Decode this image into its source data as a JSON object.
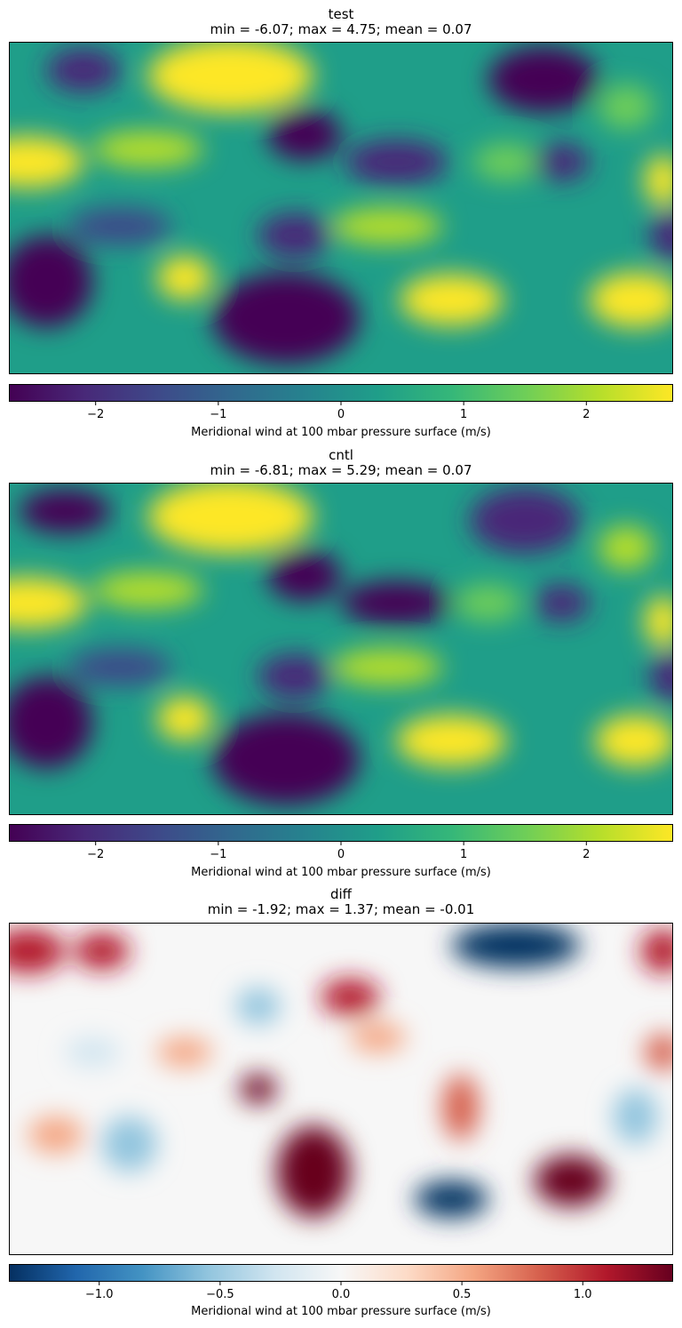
{
  "chart_data": [
    {
      "type": "heatmap",
      "panel": "test",
      "title": "test",
      "subtitle": "min = -6.07; max = 4.75; mean = 0.07",
      "colormap": "viridis",
      "colorbar": {
        "label": "Meridional wind at 100 mbar pressure surface (m/s)",
        "range": [
          -2.7,
          2.7
        ],
        "ticks": [
          -2,
          -1,
          0,
          1,
          2
        ],
        "tick_labels": [
          "−2",
          "−1",
          "0",
          "1",
          "2"
        ]
      },
      "grid": false,
      "field_blobs": [
        {
          "lon": 120,
          "lat": 72,
          "value": 2.7,
          "rx": 45,
          "ry": 20
        },
        {
          "lon": 160,
          "lat": 40,
          "value": -2.5,
          "rx": 20,
          "ry": 14
        },
        {
          "lon": 210,
          "lat": 25,
          "value": -2.2,
          "rx": 28,
          "ry": 12
        },
        {
          "lon": 290,
          "lat": 70,
          "value": -2.7,
          "rx": 30,
          "ry": 18
        },
        {
          "lon": 10,
          "lat": 25,
          "value": 2.5,
          "rx": 30,
          "ry": 14
        },
        {
          "lon": 75,
          "lat": 32,
          "value": 2.3,
          "rx": 30,
          "ry": 10
        },
        {
          "lon": 355,
          "lat": 15,
          "value": 2.5,
          "rx": 10,
          "ry": 14
        },
        {
          "lon": 335,
          "lat": 55,
          "value": 1.8,
          "rx": 15,
          "ry": 12
        },
        {
          "lon": 40,
          "lat": 75,
          "value": -2.4,
          "rx": 20,
          "ry": 12
        },
        {
          "lon": 20,
          "lat": -40,
          "value": -2.5,
          "rx": 25,
          "ry": 25
        },
        {
          "lon": 95,
          "lat": -38,
          "value": 2.7,
          "rx": 15,
          "ry": 12
        },
        {
          "lon": 150,
          "lat": -60,
          "value": -2.7,
          "rx": 40,
          "ry": 25
        },
        {
          "lon": 240,
          "lat": -50,
          "value": 2.7,
          "rx": 28,
          "ry": 14
        },
        {
          "lon": 340,
          "lat": -50,
          "value": 2.7,
          "rx": 25,
          "ry": 15
        },
        {
          "lon": 205,
          "lat": -10,
          "value": 2.0,
          "rx": 30,
          "ry": 10
        },
        {
          "lon": 60,
          "lat": -10,
          "value": -1.8,
          "rx": 28,
          "ry": 10
        },
        {
          "lon": 155,
          "lat": -15,
          "value": -2.0,
          "rx": 20,
          "ry": 12
        },
        {
          "lon": 360,
          "lat": -15,
          "value": -2.3,
          "rx": 12,
          "ry": 14
        },
        {
          "lon": 270,
          "lat": 25,
          "value": 1.5,
          "rx": 18,
          "ry": 10
        },
        {
          "lon": 300,
          "lat": 25,
          "value": -2.0,
          "rx": 15,
          "ry": 10
        }
      ]
    },
    {
      "type": "heatmap",
      "panel": "cntl",
      "title": "cntl",
      "subtitle": "min = -6.81; max = 5.29; mean = 0.07",
      "colormap": "viridis",
      "colorbar": {
        "label": "Meridional wind at 100 mbar pressure surface (m/s)",
        "range": [
          -2.7,
          2.7
        ],
        "ticks": [
          -2,
          -1,
          0,
          1,
          2
        ],
        "tick_labels": [
          "−2",
          "−1",
          "0",
          "1",
          "2"
        ]
      },
      "grid": false,
      "field_blobs": [
        {
          "lon": 120,
          "lat": 72,
          "value": 2.7,
          "rx": 45,
          "ry": 20
        },
        {
          "lon": 160,
          "lat": 40,
          "value": -2.6,
          "rx": 20,
          "ry": 14
        },
        {
          "lon": 210,
          "lat": 25,
          "value": -2.5,
          "rx": 30,
          "ry": 12
        },
        {
          "lon": 280,
          "lat": 70,
          "value": -2.4,
          "rx": 30,
          "ry": 18
        },
        {
          "lon": 10,
          "lat": 25,
          "value": 2.6,
          "rx": 32,
          "ry": 14
        },
        {
          "lon": 75,
          "lat": 32,
          "value": 2.3,
          "rx": 30,
          "ry": 10
        },
        {
          "lon": 355,
          "lat": 15,
          "value": 2.5,
          "rx": 10,
          "ry": 14
        },
        {
          "lon": 335,
          "lat": 55,
          "value": 1.9,
          "rx": 15,
          "ry": 12
        },
        {
          "lon": 30,
          "lat": 75,
          "value": -2.7,
          "rx": 25,
          "ry": 12
        },
        {
          "lon": 20,
          "lat": -40,
          "value": -2.6,
          "rx": 25,
          "ry": 25
        },
        {
          "lon": 95,
          "lat": -38,
          "value": 2.7,
          "rx": 15,
          "ry": 12
        },
        {
          "lon": 150,
          "lat": -60,
          "value": -2.7,
          "rx": 40,
          "ry": 25
        },
        {
          "lon": 240,
          "lat": -50,
          "value": 2.7,
          "rx": 30,
          "ry": 14
        },
        {
          "lon": 340,
          "lat": -50,
          "value": 2.7,
          "rx": 22,
          "ry": 14
        },
        {
          "lon": 205,
          "lat": -10,
          "value": 2.0,
          "rx": 30,
          "ry": 10
        },
        {
          "lon": 60,
          "lat": -10,
          "value": -1.8,
          "rx": 28,
          "ry": 10
        },
        {
          "lon": 155,
          "lat": -15,
          "value": -2.1,
          "rx": 20,
          "ry": 12
        },
        {
          "lon": 360,
          "lat": -15,
          "value": -2.3,
          "rx": 12,
          "ry": 14
        },
        {
          "lon": 260,
          "lat": 25,
          "value": 1.8,
          "rx": 18,
          "ry": 10
        },
        {
          "lon": 300,
          "lat": 25,
          "value": -2.2,
          "rx": 15,
          "ry": 10
        }
      ]
    },
    {
      "type": "heatmap",
      "panel": "diff",
      "title": "diff",
      "subtitle": "min = -1.92; max = 1.37; mean = -0.01",
      "colormap": "RdBu_r",
      "colorbar": {
        "label": "Meridional wind at 100 mbar pressure surface (m/s)",
        "range": [
          -1.37,
          1.37
        ],
        "ticks": [
          -1.0,
          -0.5,
          0.0,
          0.5,
          1.0
        ],
        "tick_labels": [
          "−1.0",
          "−0.5",
          "0.0",
          "0.5",
          "1.0"
        ]
      },
      "grid": false,
      "field_blobs": [
        {
          "lon": 10,
          "lat": 75,
          "value": 1.2,
          "rx": 20,
          "ry": 12
        },
        {
          "lon": 50,
          "lat": 75,
          "value": 1.0,
          "rx": 15,
          "ry": 10
        },
        {
          "lon": 275,
          "lat": 78,
          "value": -1.37,
          "rx": 35,
          "ry": 12
        },
        {
          "lon": 355,
          "lat": 75,
          "value": 1.1,
          "rx": 12,
          "ry": 12
        },
        {
          "lon": 185,
          "lat": 50,
          "value": 1.2,
          "rx": 16,
          "ry": 10
        },
        {
          "lon": 135,
          "lat": 45,
          "value": -0.6,
          "rx": 12,
          "ry": 10
        },
        {
          "lon": 135,
          "lat": 0,
          "value": 1.3,
          "rx": 10,
          "ry": 8
        },
        {
          "lon": 95,
          "lat": 20,
          "value": 0.6,
          "rx": 15,
          "ry": 8
        },
        {
          "lon": 165,
          "lat": -45,
          "value": 1.3,
          "rx": 20,
          "ry": 25
        },
        {
          "lon": 240,
          "lat": -60,
          "value": -1.37,
          "rx": 20,
          "ry": 10
        },
        {
          "lon": 305,
          "lat": -50,
          "value": 1.3,
          "rx": 20,
          "ry": 14
        },
        {
          "lon": 245,
          "lat": -10,
          "value": 0.7,
          "rx": 10,
          "ry": 18
        },
        {
          "lon": 25,
          "lat": -25,
          "value": 0.6,
          "rx": 15,
          "ry": 10
        },
        {
          "lon": 65,
          "lat": -30,
          "value": -0.5,
          "rx": 15,
          "ry": 15
        },
        {
          "lon": 355,
          "lat": 20,
          "value": 0.8,
          "rx": 10,
          "ry": 10
        },
        {
          "lon": 340,
          "lat": -15,
          "value": -0.6,
          "rx": 12,
          "ry": 15
        },
        {
          "lon": 200,
          "lat": 28,
          "value": 0.6,
          "rx": 15,
          "ry": 8
        },
        {
          "lon": 45,
          "lat": 20,
          "value": -0.4,
          "rx": 15,
          "ry": 8
        }
      ]
    }
  ]
}
